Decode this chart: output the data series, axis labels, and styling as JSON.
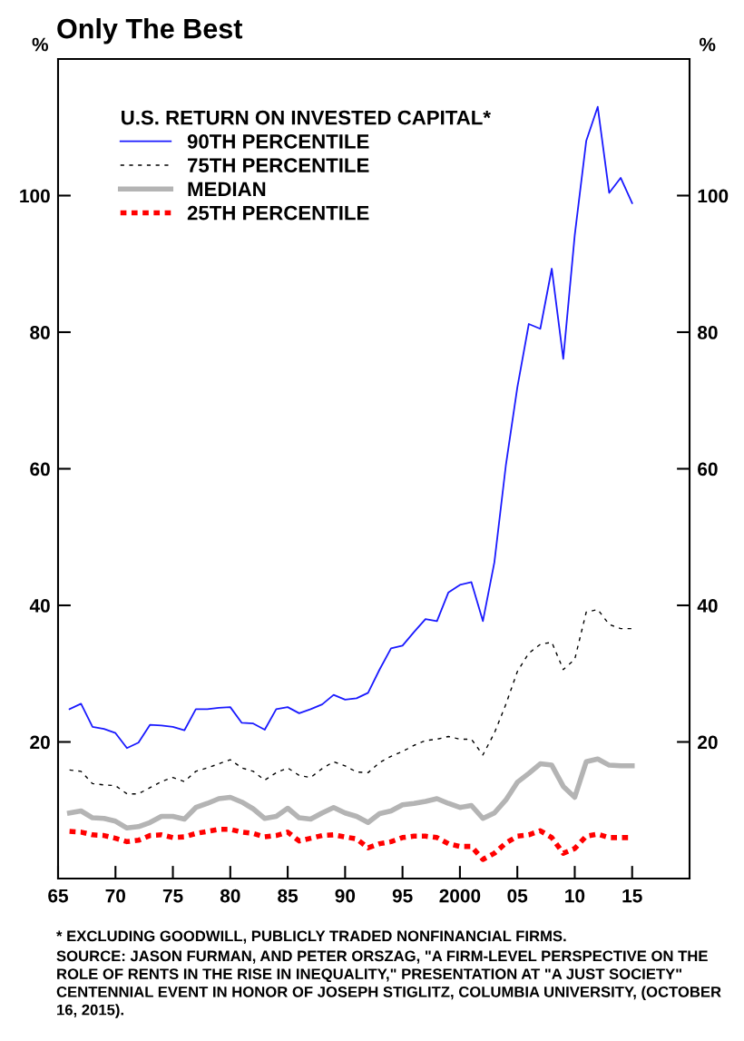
{
  "chart_data": {
    "type": "line",
    "title": "Only The Best",
    "ylabel": "%",
    "y2label": "%",
    "legend_title": "U.S. RETURN ON INVESTED CAPITAL*",
    "legend": "top left",
    "grid": false,
    "marker": "none",
    "x": [
      1966,
      1967,
      1968,
      1969,
      1970,
      1971,
      1972,
      1973,
      1974,
      1975,
      1976,
      1977,
      1978,
      1979,
      1980,
      1981,
      1982,
      1983,
      1984,
      1985,
      1986,
      1987,
      1988,
      1989,
      1990,
      1991,
      1992,
      1993,
      1994,
      1995,
      1996,
      1997,
      1998,
      1999,
      2000,
      2001,
      2002,
      2003,
      2004,
      2005,
      2006,
      2007,
      2008,
      2009,
      2010,
      2011,
      2012,
      2013,
      2014,
      2015
    ],
    "xlim": [
      1965,
      2020
    ],
    "xticks": [
      {
        "value": 1965,
        "label": "65"
      },
      {
        "value": 1970,
        "label": "70"
      },
      {
        "value": 1975,
        "label": "75"
      },
      {
        "value": 1980,
        "label": "80"
      },
      {
        "value": 1985,
        "label": "85"
      },
      {
        "value": 1990,
        "label": "90"
      },
      {
        "value": 1995,
        "label": "95"
      },
      {
        "value": 2000,
        "label": "2000"
      },
      {
        "value": 2005,
        "label": "05"
      },
      {
        "value": 2010,
        "label": "10"
      },
      {
        "value": 2015,
        "label": "15"
      }
    ],
    "ylim": [
      0,
      120
    ],
    "yticks": [
      20,
      40,
      60,
      80,
      100
    ],
    "y2lim": [
      0,
      120
    ],
    "y2ticks": [
      20,
      40,
      60,
      80,
      100
    ],
    "series": [
      {
        "name": "90TH PERCENTILE",
        "color": "#1a1aff",
        "line_style": "solid",
        "values": [
          24.8,
          25.6,
          22.2,
          21.9,
          21.3,
          19.1,
          19.9,
          22.5,
          22.4,
          22.2,
          21.7,
          24.8,
          24.8,
          25.0,
          25.1,
          22.8,
          22.7,
          21.8,
          24.8,
          25.1,
          24.2,
          24.8,
          25.5,
          26.9,
          26.2,
          26.4,
          27.2,
          30.6,
          33.7,
          34.1,
          36.1,
          38.0,
          37.7,
          41.9,
          43.0,
          43.4,
          37.7,
          46.3,
          60.5,
          71.9,
          81.2,
          80.5,
          89.3,
          76.1,
          94.2,
          108.0,
          113.0,
          100.4,
          102.6,
          98.9
        ]
      },
      {
        "name": "75TH PERCENTILE",
        "color": "#000000",
        "line_style": "dashed",
        "values": [
          15.9,
          15.7,
          13.9,
          13.7,
          13.6,
          12.4,
          12.4,
          13.3,
          14.2,
          14.8,
          14.2,
          15.7,
          16.2,
          16.8,
          17.4,
          16.2,
          15.7,
          14.4,
          15.5,
          16.2,
          15.1,
          14.8,
          16.1,
          17.1,
          16.5,
          15.6,
          15.5,
          17.0,
          17.9,
          18.6,
          19.5,
          20.2,
          20.4,
          20.8,
          20.4,
          20.4,
          18.1,
          21.3,
          25.5,
          30.3,
          33.0,
          34.3,
          34.6,
          30.6,
          32.1,
          39.0,
          39.4,
          37.2,
          36.6,
          36.6
        ]
      },
      {
        "name": "MEDIAN",
        "color": "#b4b4b4",
        "line_style": "solid",
        "values": [
          9.6,
          9.9,
          8.9,
          8.8,
          8.4,
          7.4,
          7.6,
          8.2,
          9.1,
          9.1,
          8.7,
          10.4,
          11.0,
          11.7,
          11.9,
          11.2,
          10.2,
          8.8,
          9.1,
          10.3,
          8.9,
          8.7,
          9.6,
          10.4,
          9.6,
          9.1,
          8.2,
          9.5,
          9.9,
          10.8,
          11.0,
          11.3,
          11.7,
          11.0,
          10.4,
          10.7,
          8.8,
          9.6,
          11.5,
          14.1,
          15.4,
          16.8,
          16.6,
          13.5,
          11.9,
          17.1,
          17.5,
          16.6,
          16.5,
          16.5
        ]
      },
      {
        "name": "25TH PERCENTILE",
        "color": "#ff0000",
        "line_style": "dashed",
        "values": [
          6.9,
          6.8,
          6.4,
          6.3,
          5.9,
          5.4,
          5.6,
          6.3,
          6.4,
          6.0,
          6.1,
          6.6,
          6.9,
          7.2,
          7.2,
          6.8,
          6.6,
          6.1,
          6.3,
          6.8,
          5.5,
          5.9,
          6.3,
          6.4,
          6.1,
          5.8,
          4.5,
          5.1,
          5.4,
          6.0,
          6.2,
          6.2,
          6.0,
          5.1,
          4.7,
          4.7,
          2.8,
          3.7,
          5.2,
          6.2,
          6.4,
          7.0,
          6.0,
          3.7,
          4.4,
          6.2,
          6.5,
          6.0,
          6.0,
          6.0
        ]
      }
    ],
    "annotations": [
      "* EXCLUDING GOODWILL, PUBLICLY TRADED NONFINANCIAL FIRMS.",
      "SOURCE: JASON FURMAN, AND PETER ORSZAG, \"A FIRM-LEVEL PERSPECTIVE ON THE ROLE OF RENTS IN THE RISE IN INEQUALITY,\" PRESENTATION AT \"A JUST SOCIETY\" CENTENNIAL EVENT IN HONOR OF JOSEPH STIGLITZ, COLUMBIA UNIVERSITY, (OCTOBER 16, 2015)."
    ]
  }
}
